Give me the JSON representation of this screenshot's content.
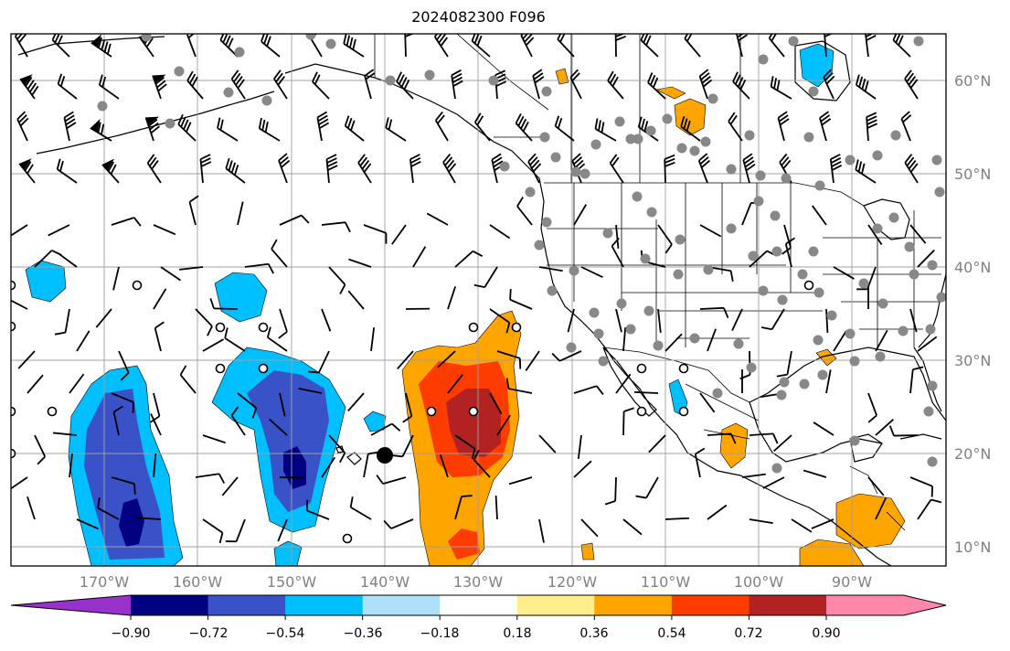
{
  "title": "2024082300 F096",
  "map": {
    "lon_ticks": [
      "170°W",
      "160°W",
      "150°W",
      "140°W",
      "130°W",
      "120°W",
      "110°W",
      "100°W",
      "90°W"
    ],
    "lat_ticks": [
      "10°N",
      "20°N",
      "30°N",
      "40°N",
      "50°N",
      "60°N"
    ],
    "grid": true,
    "fill_colors": {
      "neg_090": "#000080",
      "neg_072": "#3a52c8",
      "neg_054": "#00bfff",
      "neg_036": "#aee0fa",
      "pos_036": "#ffa500",
      "pos_054": "#ff3c00",
      "pos_072": "#b22222"
    },
    "markers": {
      "gray_station": "#888888",
      "open_circle": "#000000",
      "filled_dot": "#000000"
    },
    "wind_barbs": "black",
    "land_border_color": "#000000"
  },
  "colorbar": {
    "ticks": [
      "−0.90",
      "−0.72",
      "−0.54",
      "−0.36",
      "−0.18",
      "0.18",
      "0.36",
      "0.54",
      "0.72",
      "0.90"
    ],
    "colors": [
      "#9932cc",
      "#000080",
      "#3a52c8",
      "#00bfff",
      "#aee0fa",
      "#ffffff",
      "#ffec8b",
      "#ffa500",
      "#ff3c00",
      "#b22222",
      "#ff88aa"
    ],
    "extend": "both"
  }
}
